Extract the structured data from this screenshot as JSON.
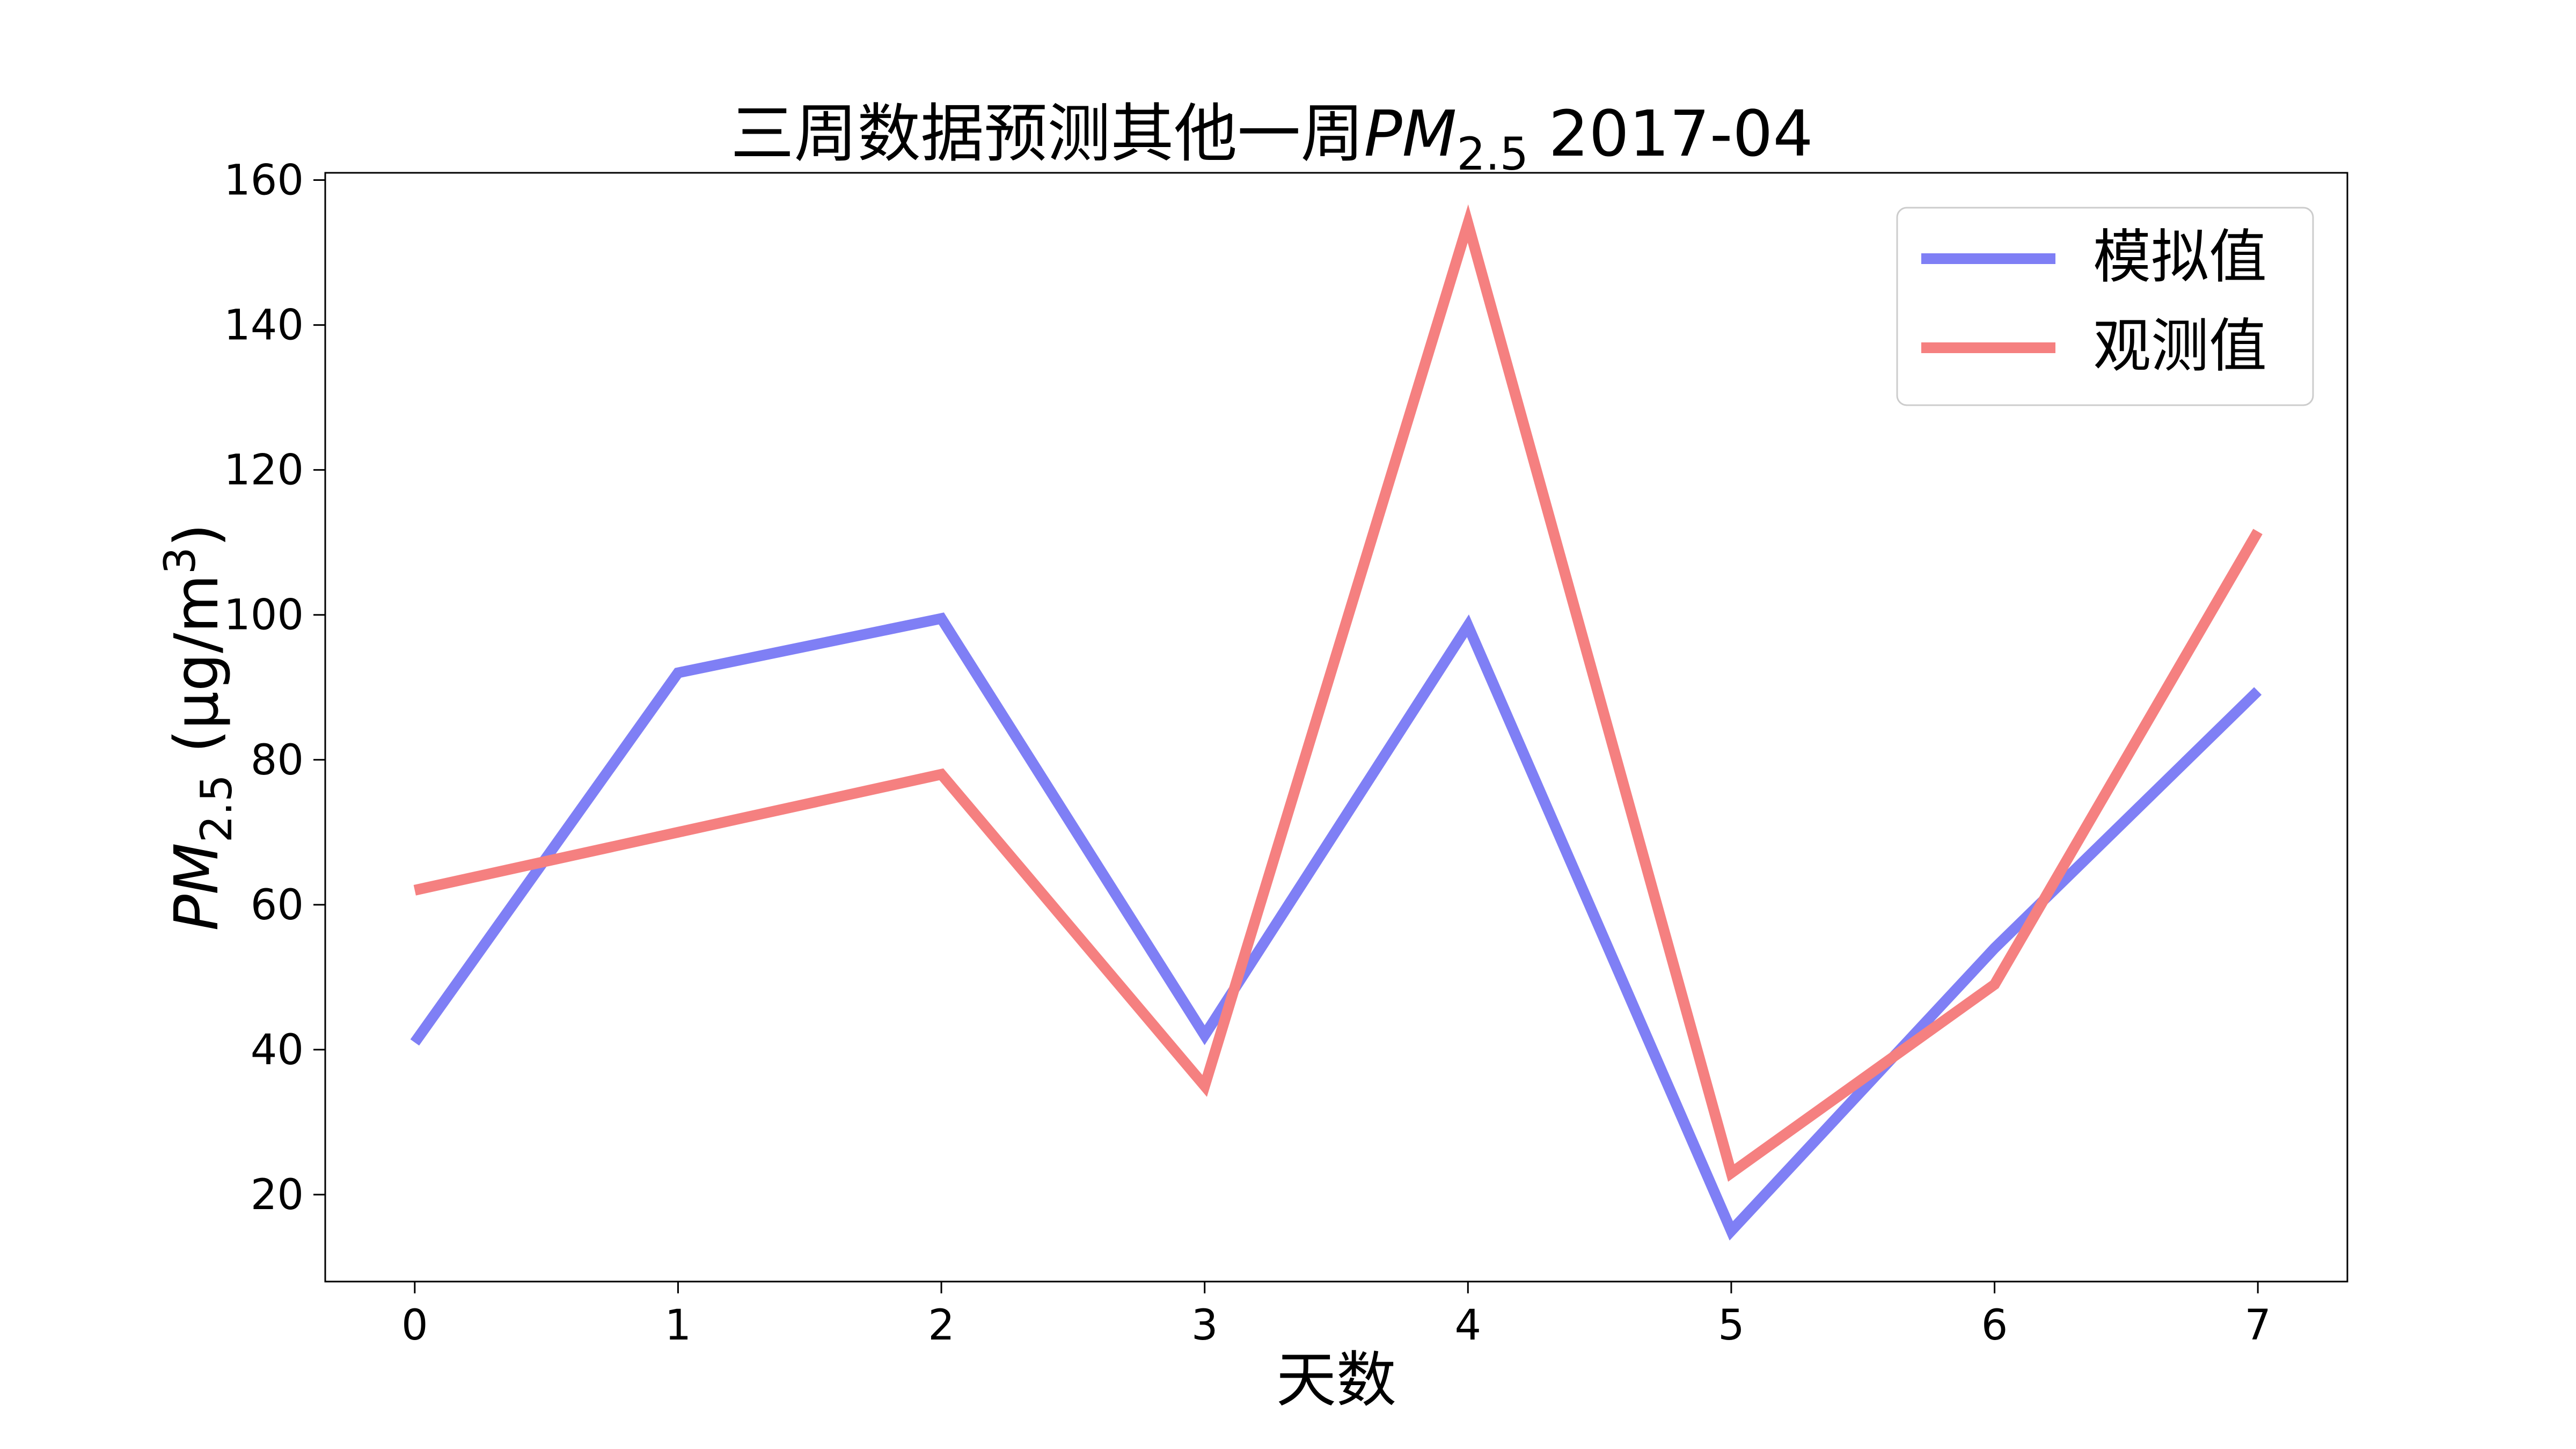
{
  "chart_data": {
    "type": "line",
    "title": "三周数据预测其他一周PM2.5 2017-04",
    "title_main": "三周数据预测其他一周",
    "title_pm": "PM",
    "title_sub": "2.5",
    "title_suffix": " 2017-04",
    "xlabel": "天数",
    "ylabel_pm": "PM",
    "ylabel_sub": "2.5",
    "ylabel_unit": "(μg/m",
    "ylabel_sup": "3",
    "ylabel_close": ")",
    "x": [
      0,
      1,
      2,
      3,
      4,
      5,
      6,
      7
    ],
    "xlim": [
      -0.34,
      7.34
    ],
    "ylim": [
      8,
      161
    ],
    "xticks": [
      0,
      1,
      2,
      3,
      4,
      5,
      6,
      7
    ],
    "yticks": [
      20,
      40,
      60,
      80,
      100,
      120,
      140,
      160
    ],
    "grid": false,
    "legend_position": "top-right",
    "series": [
      {
        "name": "模拟值",
        "color": "#7f7ff5",
        "values": [
          41,
          92,
          99.5,
          42,
          98.5,
          15,
          54,
          89.5
        ]
      },
      {
        "name": "观测值",
        "color": "#f58080",
        "values": [
          62,
          70,
          78,
          35,
          154,
          23,
          49,
          111.5
        ]
      }
    ]
  }
}
